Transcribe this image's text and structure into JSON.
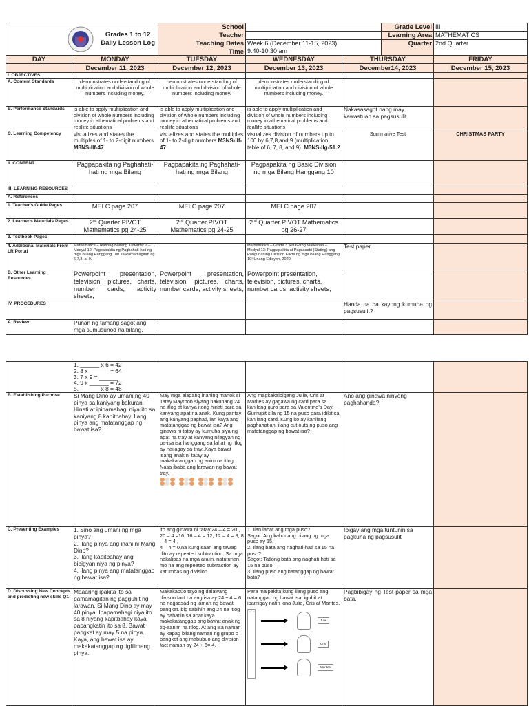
{
  "header": {
    "title_line1": "Grades 1 to 12",
    "title_line2": "Daily Lesson Log",
    "school_label": "School",
    "school_value": "",
    "teacher_label": "Teacher",
    "teacher_value": "",
    "dates_label": "Teaching Dates",
    "dates_value": "Week 6 (December 11-15, 2023)",
    "time_label": "Time",
    "time_value": "9:40-10:30 am",
    "grade_label": "Grade Level",
    "grade_value": "III",
    "area_label": "Learning Area",
    "area_value": "MATHEMATICS",
    "quarter_label": "Quarter",
    "quarter_value": "2nd  Quarter"
  },
  "days": [
    "DAY",
    "MONDAY",
    "TUESDAY",
    "WEDNESDAY",
    "THURSDAY",
    "FRIDAY"
  ],
  "dates": [
    "",
    "December 11, 2023",
    "December 12, 2023",
    "December 13, 2023",
    "December14, 2023",
    "December 15, 2023"
  ],
  "rows_page1": [
    {
      "label": "I. OBJECTIVES",
      "cells": [
        "",
        "",
        "",
        "",
        ""
      ]
    },
    {
      "label": "A.  Content Standards",
      "cells": [
        "demonstrates understanding of multiplication and division of whole numbers including money.",
        "demonstrates understanding of multiplication and division of whole numbers including money.",
        "demonstrates understanding of multiplication and division of whole numbers including money.",
        "",
        ""
      ]
    },
    {
      "label": "B.  Performance Standards",
      "cells": [
        "is able to apply multiplication and division of whole numbers including money in athematical problems and reallife situations",
        "is able to apply multiplication and division of whole numbers including money in athematical problems and reallife situations",
        "is able to apply multiplication and division of whole numbers including money in athematical problems and reallife situations",
        "Nakasasagot nang may kawastuan sa pagsusulit.",
        ""
      ]
    },
    {
      "label": "C.  Learning Competency",
      "cells": [
        {
          "text": "visualizes and states the multiples of 1- to 2-digit numbers ",
          "code": "M3NS-IIf-47"
        },
        {
          "text": "visualizes and states the multiples of 1- to 2-digit numbers ",
          "code": "M3NS-IIf-47"
        },
        {
          "text": "visualizes division of numbers up to 100 by 6,7,8,and 9 (multiplication table of 6, 7, 8, and 9). ",
          "code": "M3NS-IIg-51.2"
        },
        "Summative Test",
        "CHRISTMAS PARTY"
      ]
    },
    {
      "label": "II. CONTENT",
      "cells": [
        "Pagpapakita ng Paghahati-hati ng mga Bilang",
        "Pagpapakita ng Paghahati-hati ng mga Bilang",
        "Pagpapakita ng Basic Division ng mga Bilang Hanggang 10",
        "",
        ""
      ]
    },
    {
      "label": "III. LEARNING RESOURCES",
      "cells": [
        "",
        "",
        "",
        "",
        ""
      ]
    },
    {
      "label": "A.   References",
      "cells": [
        "",
        "",
        "",
        "",
        ""
      ]
    },
    {
      "label": "1.  Teacher's Guide Pages",
      "cells": [
        "MELC page 207",
        "MELC page 207",
        "MELC page 207",
        "",
        ""
      ]
    },
    {
      "label": "2.  Learner's Materials Pages",
      "cells": [
        {
          "text": "2",
          "sup": "nd",
          "rest": "  Quarter PIVOT Mathematics pg 24-25"
        },
        {
          "text": "2",
          "sup": "nd",
          "rest": "  Quarter PIVOT Mathematics pg 24-25"
        },
        {
          "text": "2",
          "sup": "nd",
          "rest": "  Quarter PIVOT Mathematics pg 26-27"
        },
        "",
        ""
      ]
    },
    {
      "label": "3.  Textbook Pages",
      "cells": [
        "",
        "",
        "",
        "",
        ""
      ]
    },
    {
      "label": "4.  Additional Materials From LR Portal",
      "cells": [
        "Mathematics – Ikatlong Baitang Kuwarter 2 – Modyul 12: Pagpapakita ng Paghahati-hati ng mga Bilang Hanggang 100 sa Pamamagitan ng 6,7,8, at 9.",
        "",
        "Mathematics – Grade 3 Ikalawang Markahan – Modyul 13: Pagpapakita at Pagsasabi  (Stating) ang Pangunahing Division Facts ng mga Bilang Hanggang 10! Unang Edisyon, 2020",
        "Test paper",
        ""
      ]
    },
    {
      "label": "B. Other Learning Resources",
      "cells": [
        "Powerpoint presentation, television, pictures, charts, number cards, activity sheets,",
        "Powerpoint presentation, television, pictures, charts, number cards, activity sheets,",
        "Powerpoint presentation, television, pictures, charts, number cards, activity sheets,",
        "",
        ""
      ]
    },
    {
      "label": "IV. PROCEDURES",
      "cells": [
        "",
        "",
        "",
        "Handa na ba kayong kumuha ng pagsusulit?",
        ""
      ]
    },
    {
      "label": "A. Review",
      "cells": [
        "Punan ng tamang sagot ang mga sumusunod na bilang.",
        "",
        "",
        "",
        ""
      ]
    }
  ],
  "rows_page2": [
    {
      "label": "",
      "cells": [
        "1. ______ x 6 = 42\n2. 8 x ______ = 64\n3. 7 x 9 = ______\n4. 9 x ______ = 72\n5. ______ x 8 = 48",
        "",
        "",
        "",
        ""
      ]
    },
    {
      "label": "B.  Establishing Purpose",
      "cells": [
        "Si Mang Dino ay umani ng 40 pinya sa kaniyang bakuran. Hinati at ipinamahagi niya ito sa kaniyang 8 kapitbahay. Ilang pinya ang matatanggap ng bawat isa?",
        "May mga alagang inahing manok si Tatay.Mayroon siyang nakuhang   24 na itlog at kanya itong hinati para sa  kanyang apat na anak. Kung pantay ang kanyang paghati,ilan kaya ang matatanggap ng bawat isa? Ang ginawa ni tatay ay kumuha siya ng apat na tray at kanyang nilagyan ng pa-isa isa hanggang sa lahat ng itlog ay nailagay sa tray..Kaya bawat isang anak ni tatay ay makakatanggap ng anim na itlog. Nasa  ibaba ang larawan ng bawat tray.",
        "Ang magkakaibigang Julie, Cris at Marites ay gagawa  ng card para sa kanilang guro para sa Valentine's Day.  Gumupit sila ng 15 na puso para idikit sa kanilang card. Kung ito ay kanilang paghahatian, ilang cut outs ng puso ang matatanggap ng bawat isa?",
        "Ano ang ginawa ninyong paghahanda?",
        ""
      ]
    },
    {
      "label": "C. Presenting Examples",
      "cells": [
        "1. Sino ang umani ng mga pinya?\n2. Ilang pinya ang inani  ni Mang Dino?\n3. Ilang kapitbahay ang bibigyan niya ng pinya?\n4. Ilang pinya ang matatanggap ng bawat isa?",
        "ito ang ginawa ni tatay,24 – 4 = 20 , 20 – 4 =16, 16 – 4 = 12, 12 – 4 = 8, 8 – 4 = 4 ,\n4 – 4 = 0,na kung saan ang tawag dito ay repeated subtraction. Sa mga nakalipas na mga aralin, natutunan mo na ang repeated subtraction ay katumbas ng division.",
        "1. Ilan lahat ang mga puso?\nSagot: Ang kabuuang bilang ng mga puso ay 15.\n2. Ilang bata ang naghati-hati sa 15 na puso?\nSagot: Tatlong bata ang naghati-hati sa 15 na puso.\n3. Ilang puso ang natanggap ng bawat bata?",
        "Ibigay ang mga tuntunin sa pagkuha ng pagsusulit",
        ""
      ]
    },
    {
      "label": "D. Discussing New Concepts and predicting new skills Q1",
      "cells": [
        "Maaaring ipakita ito sa pamamagitan ng pagguhit ng larawan. Si Mang Dino ay may 40 pinya. Ipapamahagi niya ito sa 8 niyang kapitbahay kaya papangkatin ito sa 8. Bawat pangkat ay may 5 na pinya. Kaya, ang bawat isa ay makakatanggap ng tiglilimang pinya.",
        "Makakabuo tayo ng dalawang divison fact na ang isa ay 24 ÷ 4 = 6, na nagsasad ng laman ng bawat pangkat.Ibig sabihin ang 24 na itlog ay hahatiin sa apat kaya makakatanggap ang bawat anak ng tig-aanim na itlog. At ang isa naman ay kapag bilang naman ng grupo o pangkat ang mabubuo ang division fact naman ay 24 ÷ 6= 4.",
        "Para maipakita kung ilang puso ang natanggap ng bawat isa, iguhit at ipamigay natin kina Julie, Cris at Marites.",
        "Pagbibigay ng Test paper sa mga bata.",
        ""
      ]
    }
  ],
  "figure_names": [
    "Julie",
    "Cris",
    "Marites"
  ],
  "colors": {
    "accent": "#fce4d6",
    "border": "#333333"
  }
}
